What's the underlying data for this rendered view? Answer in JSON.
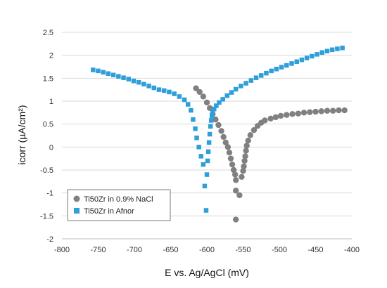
{
  "chart_data": {
    "type": "scatter",
    "title": "",
    "xlabel": "E vs. Ag/AgCl (mV)",
    "ylabel": "icorr (µA/cm²)",
    "xlim": [
      -800,
      -400
    ],
    "ylim": [
      -2,
      2.5
    ],
    "x_ticks": [
      -800,
      -750,
      -700,
      -650,
      -600,
      -550,
      -500,
      -450,
      -400
    ],
    "y_ticks": [
      -2,
      -1.5,
      -1,
      -0.5,
      0,
      0.5,
      1,
      1.5,
      2,
      2.5
    ],
    "grid": "horizontal",
    "legend_position": "bottom-left",
    "series": [
      {
        "name": "Ti50Zr in 0.9% NaCl",
        "marker": "circle",
        "color": "#808080",
        "x": [
          -615,
          -610,
          -605,
          -600,
          -596,
          -592,
          -588,
          -584,
          -580,
          -577,
          -574,
          -571,
          -569,
          -567,
          -565,
          -563,
          -561,
          -560,
          -555,
          -552,
          -550,
          -549,
          -548,
          -547,
          -546,
          -545,
          -543,
          -540,
          -535,
          -530,
          -525,
          -520,
          -512,
          -505,
          -498,
          -490,
          -482,
          -474,
          -466,
          -458,
          -450,
          -442,
          -434,
          -426,
          -418,
          -410
        ],
        "y": [
          1.28,
          1.2,
          1.1,
          0.97,
          0.85,
          0.72,
          0.6,
          0.48,
          0.35,
          0.22,
          0.1,
          0.0,
          -0.12,
          -0.25,
          -0.38,
          -0.5,
          -0.6,
          -0.72,
          -1.05,
          -0.65,
          -0.52,
          -0.42,
          -0.3,
          -0.2,
          -0.08,
          0.03,
          0.14,
          0.26,
          0.37,
          0.46,
          0.53,
          0.58,
          0.62,
          0.65,
          0.68,
          0.7,
          0.72,
          0.73,
          0.75,
          0.76,
          0.77,
          0.78,
          0.79,
          0.79,
          0.8,
          0.8
        ],
        "outliers": [
          {
            "x": -560,
            "y": -0.95
          },
          {
            "x": -560,
            "y": -1.58
          }
        ]
      },
      {
        "name": "Ti50Zr in Afnor",
        "marker": "square",
        "color": "#2e9fd8",
        "x": [
          -757,
          -750,
          -743,
          -736,
          -729,
          -722,
          -715,
          -708,
          -701,
          -694,
          -687,
          -680,
          -673,
          -666,
          -659,
          -652,
          -645,
          -638,
          -631,
          -626,
          -622,
          -619,
          -616,
          -614,
          -611,
          -608,
          -605,
          -603,
          -601,
          -600,
          -599,
          -598,
          -597,
          -596,
          -595,
          -594,
          -593,
          -592,
          -590,
          -587,
          -583,
          -578,
          -572,
          -566,
          -560,
          -553,
          -546,
          -539,
          -532,
          -525,
          -518,
          -511,
          -504,
          -497,
          -490,
          -483,
          -476,
          -469,
          -462,
          -455,
          -448,
          -441,
          -434,
          -427,
          -420,
          -413
        ],
        "y": [
          1.68,
          1.66,
          1.63,
          1.6,
          1.57,
          1.54,
          1.51,
          1.48,
          1.44,
          1.41,
          1.37,
          1.33,
          1.29,
          1.25,
          1.23,
          1.2,
          1.16,
          1.1,
          1.03,
          0.93,
          0.8,
          0.6,
          0.4,
          0.2,
          0.0,
          -0.2,
          -0.38,
          -0.85,
          -1.38,
          -0.6,
          -0.3,
          -0.1,
          0.1,
          0.28,
          0.45,
          0.58,
          0.68,
          0.76,
          0.83,
          0.9,
          0.97,
          1.04,
          1.12,
          1.19,
          1.26,
          1.33,
          1.39,
          1.45,
          1.51,
          1.56,
          1.61,
          1.66,
          1.7,
          1.74,
          1.78,
          1.82,
          1.86,
          1.9,
          1.94,
          1.98,
          2.02,
          2.06,
          2.09,
          2.12,
          2.14,
          2.16
        ]
      }
    ]
  }
}
